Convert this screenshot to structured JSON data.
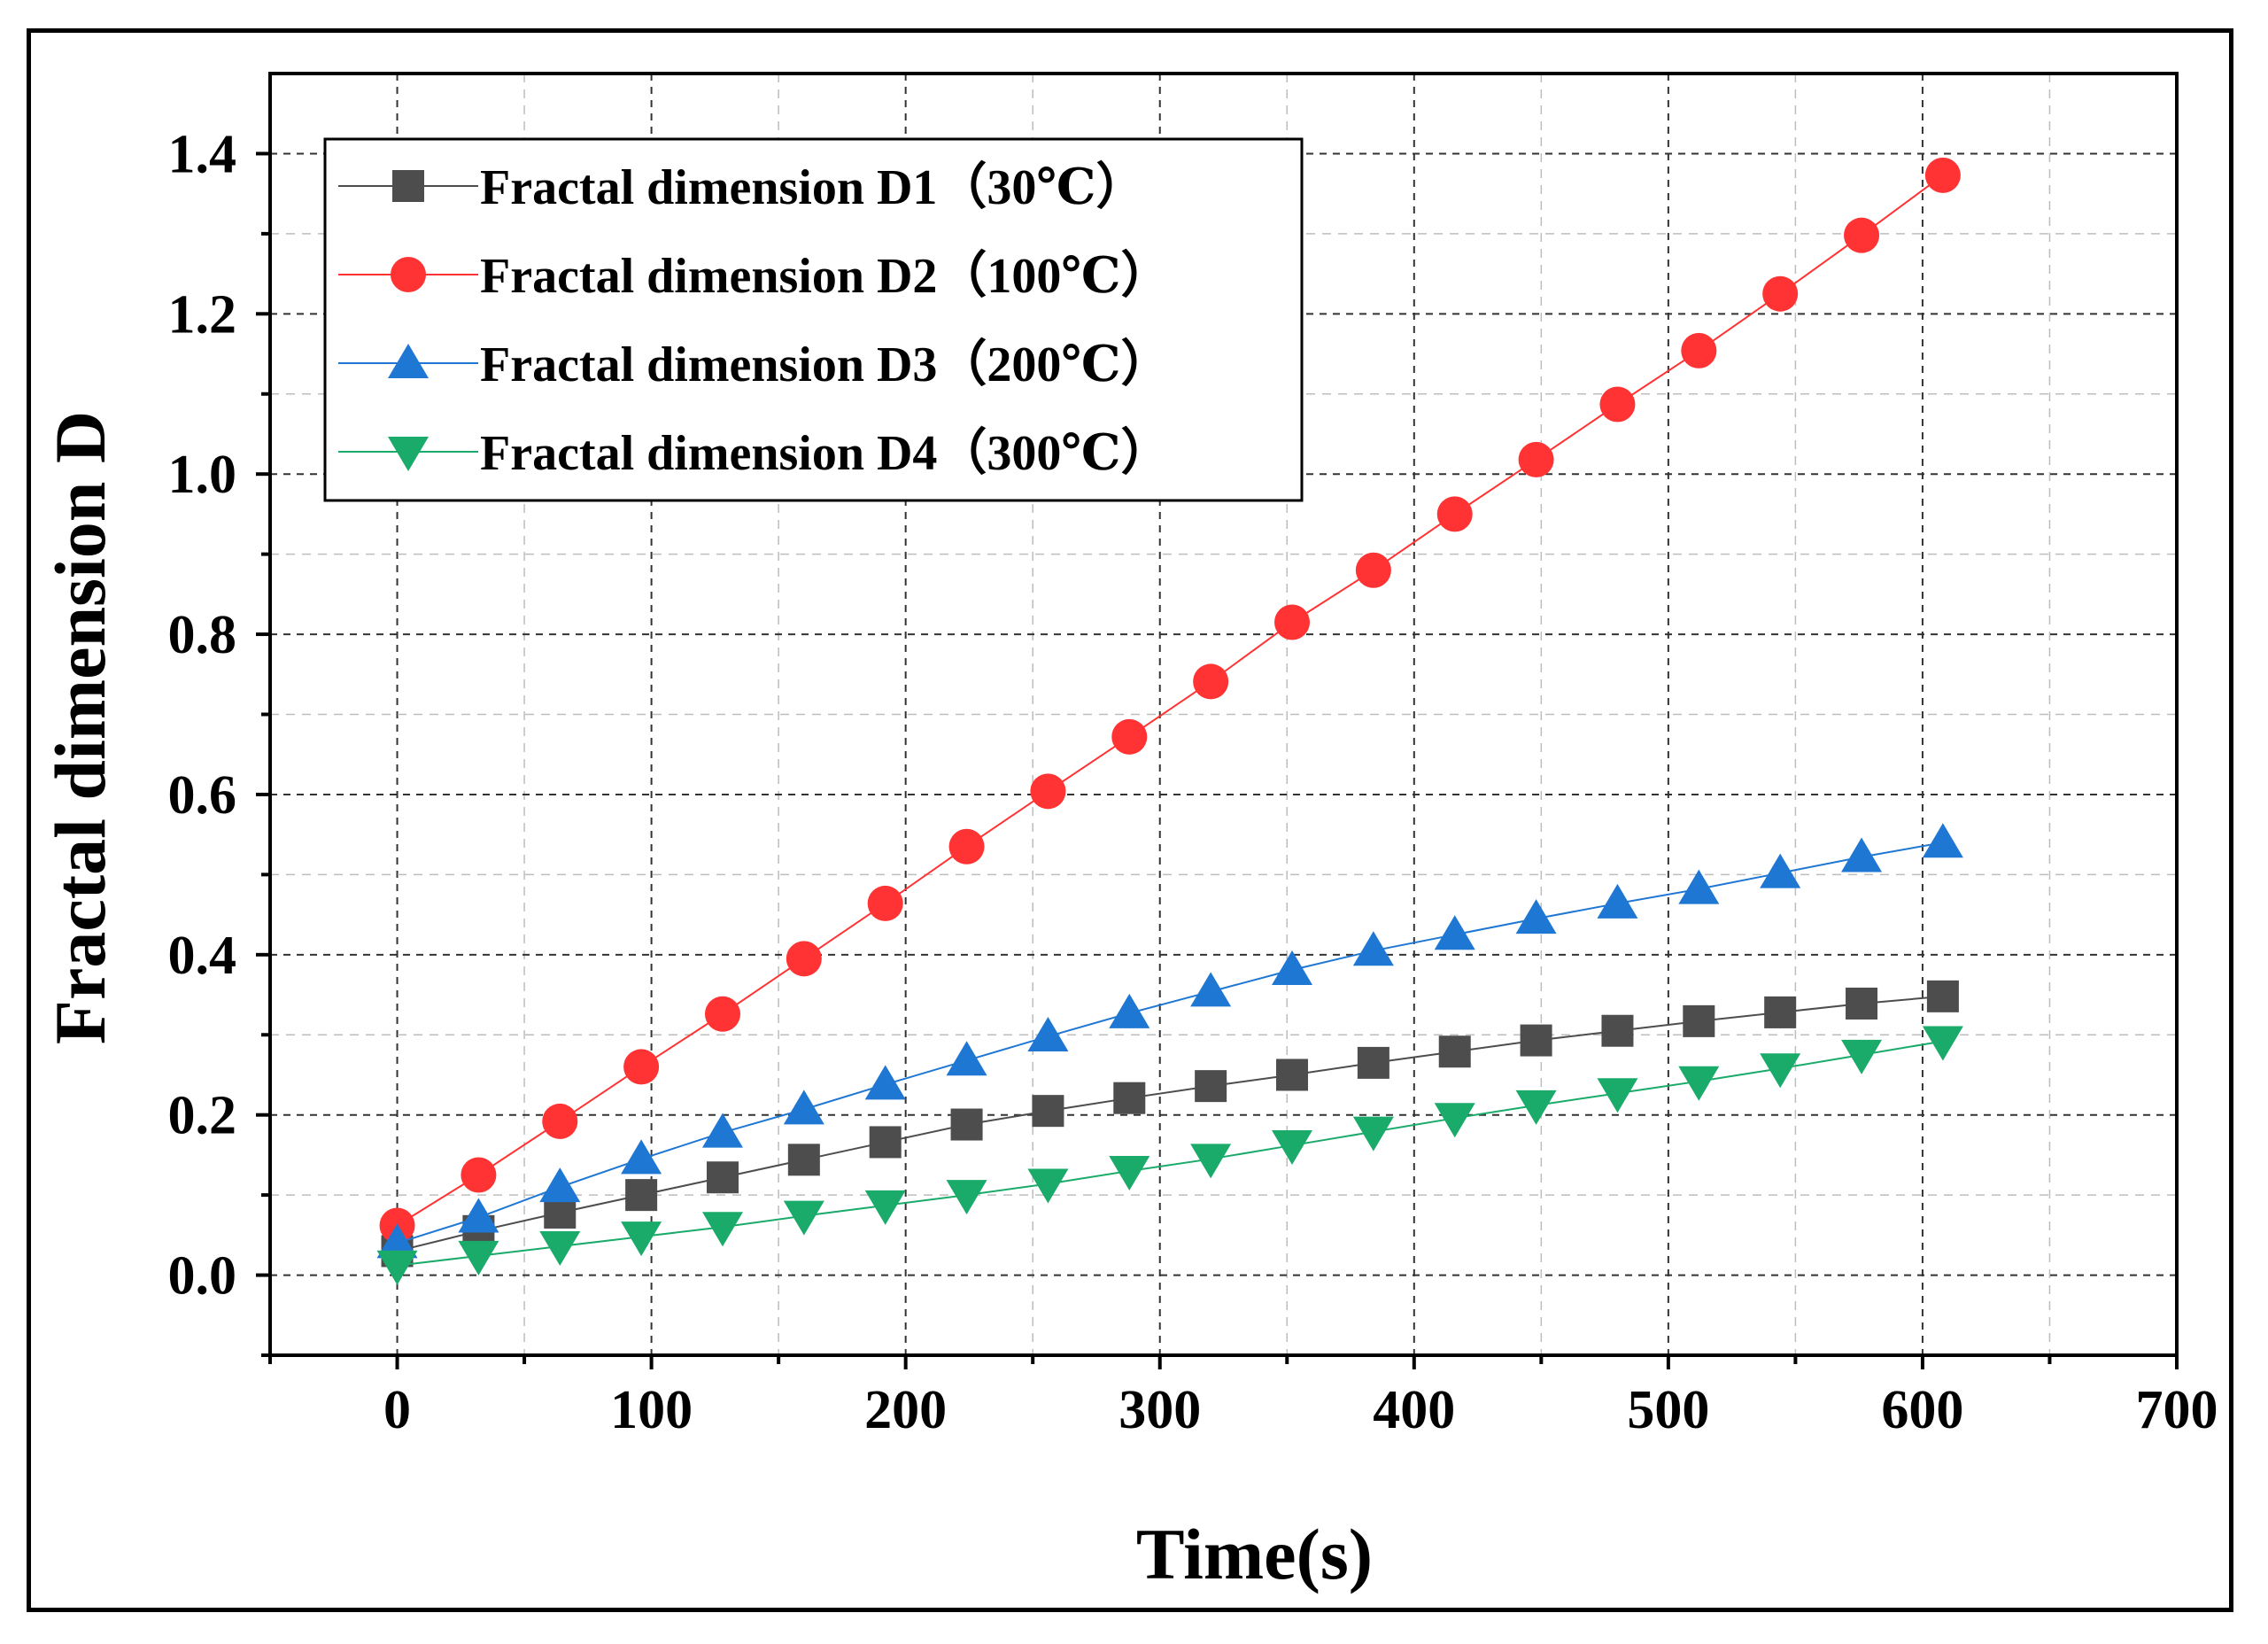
{
  "chart_data": {
    "type": "line",
    "title": "",
    "xlabel": "Time(s)",
    "ylabel": "Fractal dimension D",
    "xlim": [
      -50,
      700
    ],
    "ylim": [
      -0.1,
      1.5
    ],
    "xticks": [
      0,
      100,
      200,
      300,
      400,
      500,
      600,
      700
    ],
    "yticks": [
      0.0,
      0.2,
      0.4,
      0.6,
      0.8,
      1.0,
      1.2,
      1.4
    ],
    "xtick_labels": [
      "0",
      "100",
      "200",
      "300",
      "400",
      "500",
      "600",
      "700"
    ],
    "ytick_labels": [
      "0.0",
      "0.2",
      "0.4",
      "0.6",
      "0.8",
      "1.0",
      "1.2",
      "1.4"
    ],
    "grid": true,
    "legend_position": "top-left",
    "x": [
      0,
      32,
      64,
      96,
      128,
      160,
      192,
      224,
      256,
      288,
      320,
      352,
      384,
      416,
      448,
      480,
      512,
      544,
      576,
      608
    ],
    "series": [
      {
        "name": "Fractal dimension D1（30℃）",
        "color": "#4d4d4d",
        "marker": "square",
        "values": [
          0.03,
          0.055,
          0.078,
          0.1,
          0.122,
          0.144,
          0.166,
          0.188,
          0.205,
          0.221,
          0.236,
          0.25,
          0.265,
          0.279,
          0.293,
          0.305,
          0.317,
          0.328,
          0.339,
          0.348
        ]
      },
      {
        "name": "Fractal dimension D2（100℃）",
        "color": "#ff3333",
        "marker": "circle",
        "values": [
          0.062,
          0.125,
          0.192,
          0.26,
          0.326,
          0.395,
          0.464,
          0.535,
          0.604,
          0.672,
          0.741,
          0.815,
          0.88,
          0.95,
          1.018,
          1.087,
          1.154,
          1.225,
          1.298,
          1.373
        ]
      },
      {
        "name": "Fractal dimension D3（200℃）",
        "color": "#1f77d4",
        "marker": "triangle-up",
        "values": [
          0.04,
          0.072,
          0.11,
          0.145,
          0.178,
          0.207,
          0.238,
          0.268,
          0.298,
          0.327,
          0.354,
          0.381,
          0.405,
          0.425,
          0.445,
          0.464,
          0.482,
          0.502,
          0.522,
          0.54
        ]
      },
      {
        "name": "Fractal dimension D4（300℃）",
        "color": "#1aab6a",
        "marker": "triangle-down",
        "values": [
          0.012,
          0.024,
          0.036,
          0.048,
          0.06,
          0.074,
          0.087,
          0.1,
          0.114,
          0.13,
          0.145,
          0.162,
          0.179,
          0.196,
          0.212,
          0.227,
          0.242,
          0.258,
          0.275,
          0.292
        ]
      }
    ]
  }
}
